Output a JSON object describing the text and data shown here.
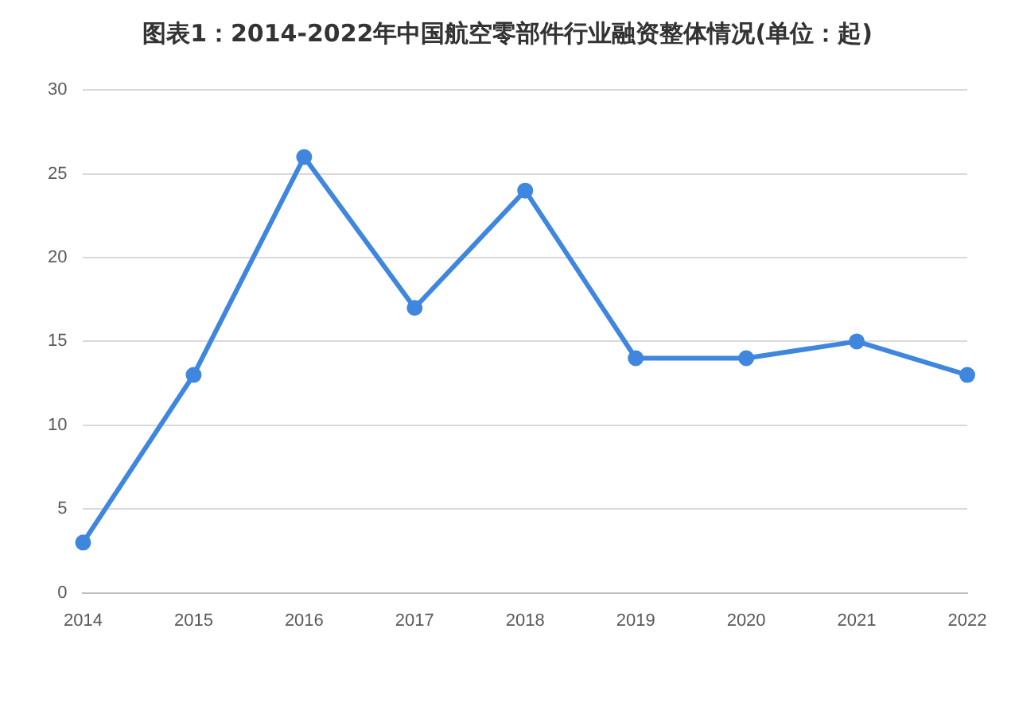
{
  "chart_data": {
    "type": "line",
    "title": "图表1：2014-2022年中国航空零部件行业融资整体情况(单位：起)",
    "categories": [
      "2014",
      "2015",
      "2016",
      "2017",
      "2018",
      "2019",
      "2020",
      "2021",
      "2022"
    ],
    "series": [
      {
        "color": "#3f86de",
        "values": [
          3,
          13,
          26,
          17,
          24,
          14,
          14,
          15,
          13
        ]
      }
    ],
    "ylim": [
      0,
      30
    ],
    "yticks": [
      0,
      5,
      10,
      15,
      20,
      25,
      30
    ],
    "grid": "y",
    "legend": false,
    "marker": "circle",
    "line_style": "solid"
  }
}
